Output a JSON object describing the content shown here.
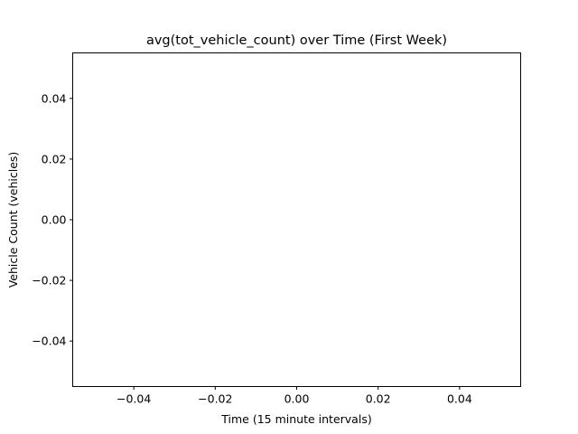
{
  "chart_data": {
    "type": "line",
    "title": "avg(tot_vehicle_count) over Time (First Week)",
    "xlabel": "Time (15 minute intervals)",
    "ylabel": "Vehicle Count (vehicles)",
    "xlim": [
      -0.055,
      0.055
    ],
    "ylim": [
      -0.055,
      0.055
    ],
    "xticks": [
      -0.04,
      -0.02,
      0.0,
      0.02,
      0.04
    ],
    "yticks": [
      -0.04,
      -0.02,
      0.0,
      0.02,
      0.04
    ],
    "xtick_labels": [
      "−0.04",
      "−0.02",
      "0.00",
      "0.02",
      "0.04"
    ],
    "ytick_labels": [
      "−0.04",
      "−0.02",
      "0.00",
      "0.02",
      "0.04"
    ],
    "grid": false,
    "series": [
      {
        "x": [],
        "y": []
      }
    ]
  }
}
